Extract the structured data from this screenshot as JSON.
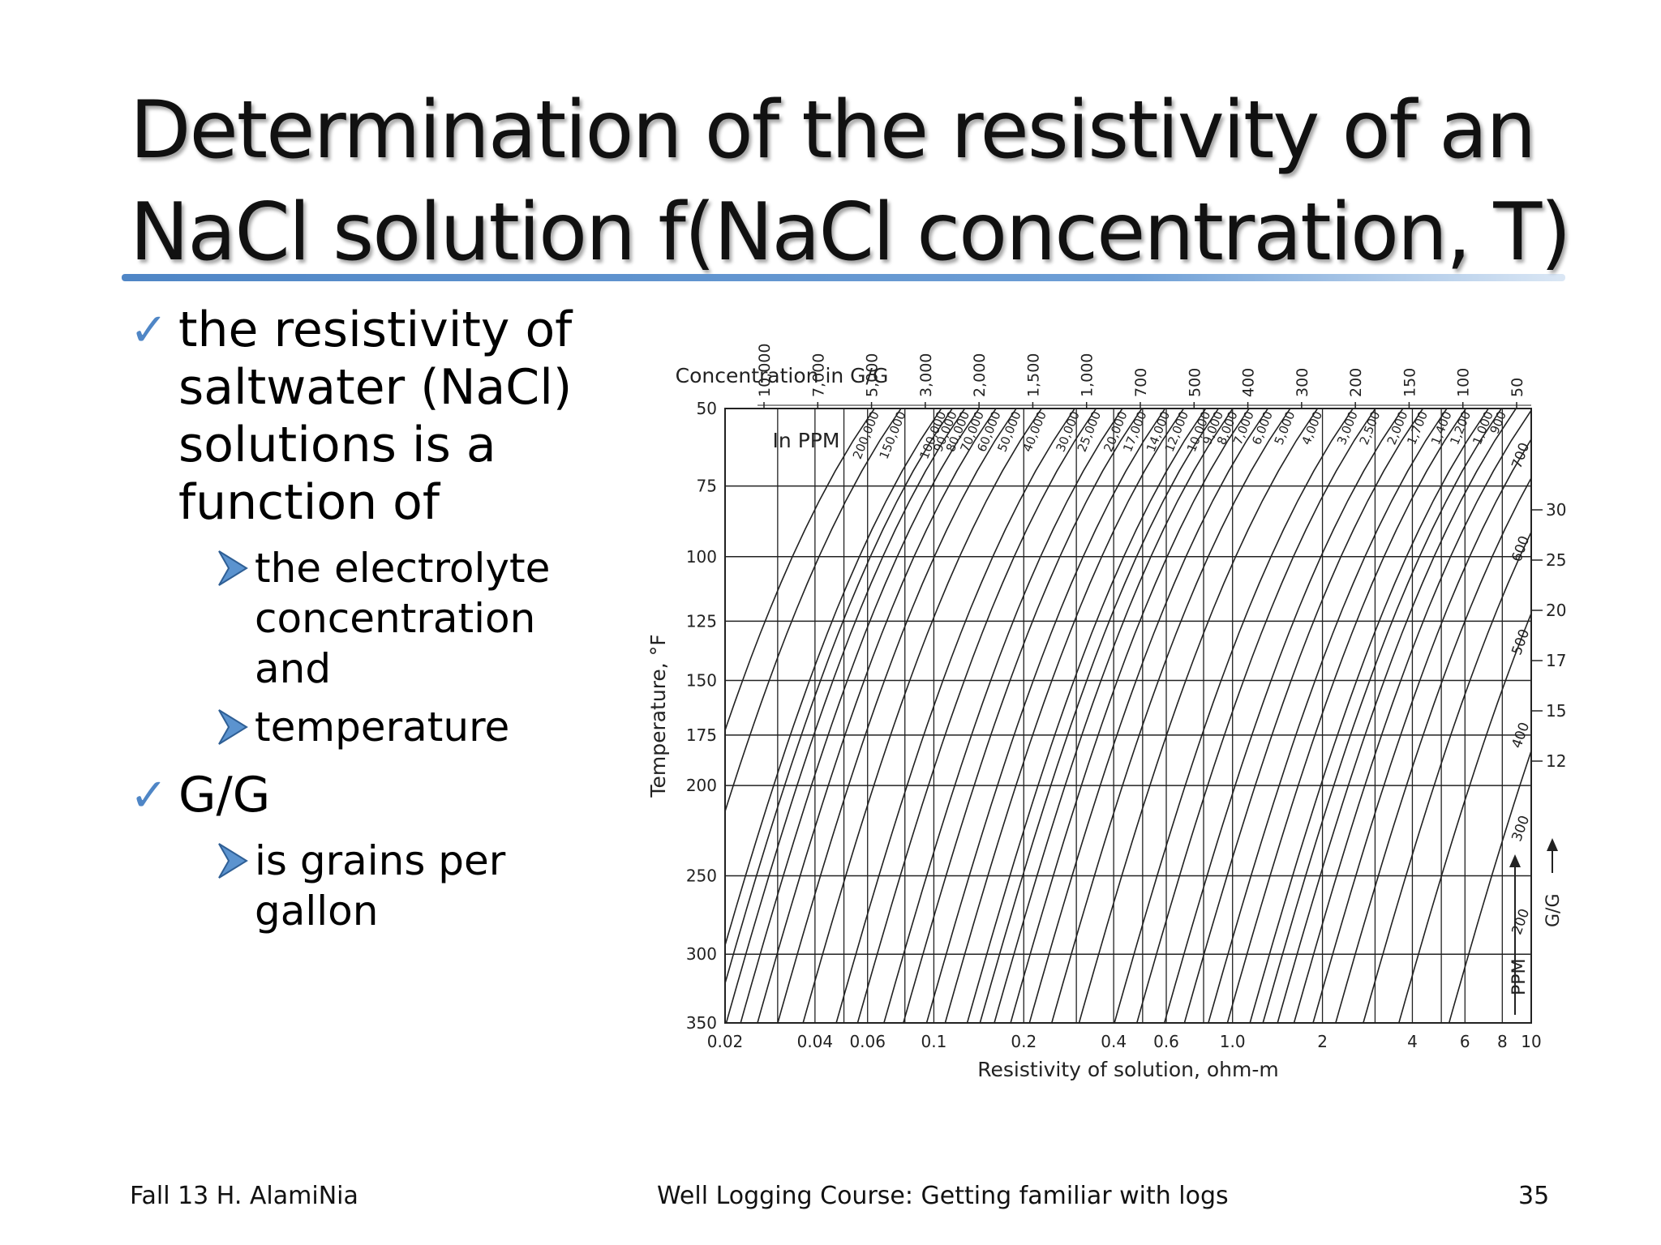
{
  "slide": {
    "title_line1": "Determination of the resistivity of an",
    "title_line2": "NaCl solution f(NaCl concentration, T)",
    "bullets": [
      {
        "text": "the resistivity of saltwater (NaCl) solutions is a function of",
        "sub": [
          "the electrolyte concentration and",
          "temperature"
        ]
      },
      {
        "text": "G/G",
        "sub": [
          "is grains per gallon"
        ]
      }
    ],
    "footer": {
      "left": "Fall 13 H. AlamiNia",
      "center": "Well Logging Course: Getting familiar with logs",
      "right": "35"
    }
  },
  "chart_data": {
    "type": "nomogram",
    "xlabel": "Resistivity of solution, ohm-m",
    "ylabel": "Temperature, °F",
    "x_scale": "log",
    "y_scale": "reciprocal-absolute",
    "xlim": [
      0.02,
      10
    ],
    "ylim": [
      50,
      350
    ],
    "x_ticks": [
      0.02,
      0.04,
      0.06,
      0.1,
      0.2,
      0.4,
      0.6,
      1.0,
      2,
      4,
      6,
      8,
      10
    ],
    "x_tick_labels": [
      "0.02",
      "0.04",
      "0.06",
      "0.1",
      "0.2",
      "0.4",
      "0.6",
      "1.0",
      "2",
      "4",
      "6",
      "8",
      "10"
    ],
    "y_ticks": [
      50,
      75,
      100,
      125,
      150,
      175,
      200,
      250,
      300,
      350
    ],
    "y_tick_labels": [
      "50",
      "75",
      "100",
      "125",
      "150",
      "175",
      "200",
      "250",
      "300",
      "350"
    ],
    "grid": true,
    "top_axis_label": "Concentration in G/G",
    "top_gg_labels": [
      "10,000",
      "7,000",
      "5,000",
      "3,000",
      "2,000",
      "1,500",
      "1,000",
      "700",
      "500",
      "400",
      "300",
      "200",
      "150",
      "100",
      "50"
    ],
    "ppm_label": "In PPM",
    "ppm_curves": [
      200000,
      150000,
      100000,
      90000,
      80000,
      70000,
      60000,
      50000,
      40000,
      30000,
      25000,
      20000,
      17000,
      14000,
      12000,
      10000,
      9000,
      8000,
      7000,
      6000,
      5000,
      4000,
      3000,
      2500,
      2000,
      1700,
      1400,
      1200,
      1000,
      900,
      800,
      700,
      600,
      500,
      400,
      300,
      200
    ],
    "ppm_curve_labels": [
      "200,000",
      "150,000",
      "100,000",
      "90,000",
      "80,000",
      "70,000",
      "60,000",
      "50,000",
      "40,000",
      "30,000",
      "25,000",
      "20,000",
      "17,000",
      "14,000",
      "12,000",
      "10,000",
      "9,000",
      "8,000",
      "7,000",
      "6,000",
      "5,000",
      "4,000",
      "3,000",
      "2,500",
      "2,000",
      "1,700",
      "1,400",
      "1,200",
      "1,000",
      "900",
      "800",
      "700",
      "600",
      "500",
      "400",
      "300",
      "200"
    ],
    "right_ppm_labels": [
      "700",
      "600",
      "500",
      "400",
      "300",
      "200"
    ],
    "right_gg_labels": [
      "30",
      "25",
      "20",
      "17",
      "15",
      "12"
    ],
    "ppm_arrow_label": "PPM",
    "gg_arrow_label": "G/G"
  }
}
